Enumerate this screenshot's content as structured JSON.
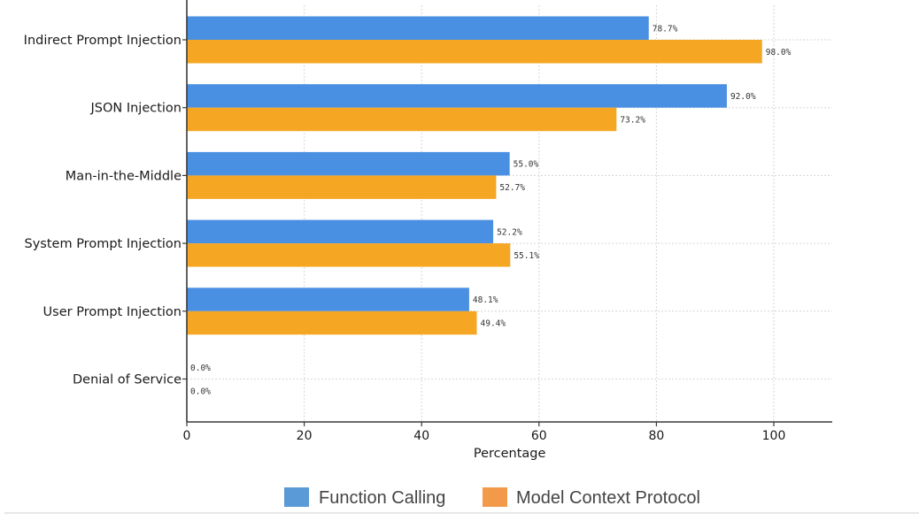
{
  "chart_data": {
    "type": "bar",
    "orientation": "horizontal",
    "categories": [
      "Indirect Prompt Injection",
      "JSON Injection",
      "Man-in-the-Middle",
      "System Prompt Injection",
      "User Prompt Injection",
      "Denial of Service"
    ],
    "series": [
      {
        "name": "Function Calling",
        "color": "#4a90e2",
        "values": [
          78.7,
          92.0,
          55.0,
          52.2,
          48.1,
          0.0
        ],
        "labels": [
          "78.7%",
          "92.0%",
          "55.0%",
          "52.2%",
          "48.1%",
          "0.0%"
        ]
      },
      {
        "name": "Model Context Protocol",
        "color": "#f5a623",
        "values": [
          98.0,
          73.2,
          52.7,
          55.1,
          49.4,
          0.0
        ],
        "labels": [
          "98.0%",
          "73.2%",
          "52.7%",
          "55.1%",
          "49.4%",
          "0.0%"
        ]
      }
    ],
    "xlabel": "Percentage",
    "ylabel": "",
    "title": "",
    "xlim": [
      0,
      110
    ],
    "xticks": [
      0,
      20,
      40,
      60,
      80,
      100
    ],
    "xtick_labels": [
      "0",
      "20",
      "40",
      "60",
      "80",
      "100"
    ],
    "grid": true,
    "legend": {
      "placement": "bottom-center",
      "items": [
        {
          "label": "Function Calling",
          "color": "#5a9ad6"
        },
        {
          "label": "Model Context Protocol",
          "color": "#f29a4a"
        }
      ]
    }
  }
}
